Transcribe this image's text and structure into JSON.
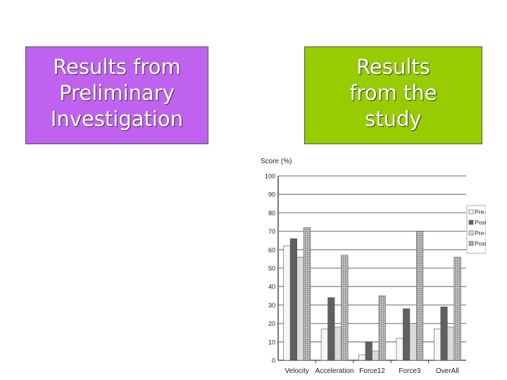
{
  "slide": {
    "left_box": {
      "lines": [
        "Results from",
        "Preliminary",
        "Investigation"
      ],
      "color": "#c062f0"
    },
    "right_box": {
      "lines": [
        "Results",
        "from the",
        "study"
      ],
      "color": "#97cc00"
    }
  },
  "chart_data": {
    "type": "bar",
    "title": "",
    "ylabel": "Score (%)",
    "xlabel": "",
    "ylim": [
      0,
      100
    ],
    "yticks": [
      0,
      10,
      20,
      30,
      40,
      50,
      60,
      70,
      80,
      90,
      100
    ],
    "grid": true,
    "legend_position": "right",
    "categories": [
      "Velocity",
      "Acceleration",
      "Force12",
      "Force3",
      "OverAll"
    ],
    "series": [
      {
        "name": "Pre-TI",
        "values": [
          62,
          17,
          3,
          12,
          17
        ],
        "color": "#f4f4f4"
      },
      {
        "name": "Post-TI",
        "values": [
          66,
          34,
          10,
          28,
          29
        ],
        "color": "#6a6a6a"
      },
      {
        "name": "Pre-PISI",
        "values": [
          56,
          18,
          5,
          20,
          18
        ],
        "color": "#d2d2d2"
      },
      {
        "name": "Post-PISI",
        "values": [
          72,
          57,
          35,
          70,
          56
        ],
        "color": "#b4b4b4"
      }
    ]
  }
}
